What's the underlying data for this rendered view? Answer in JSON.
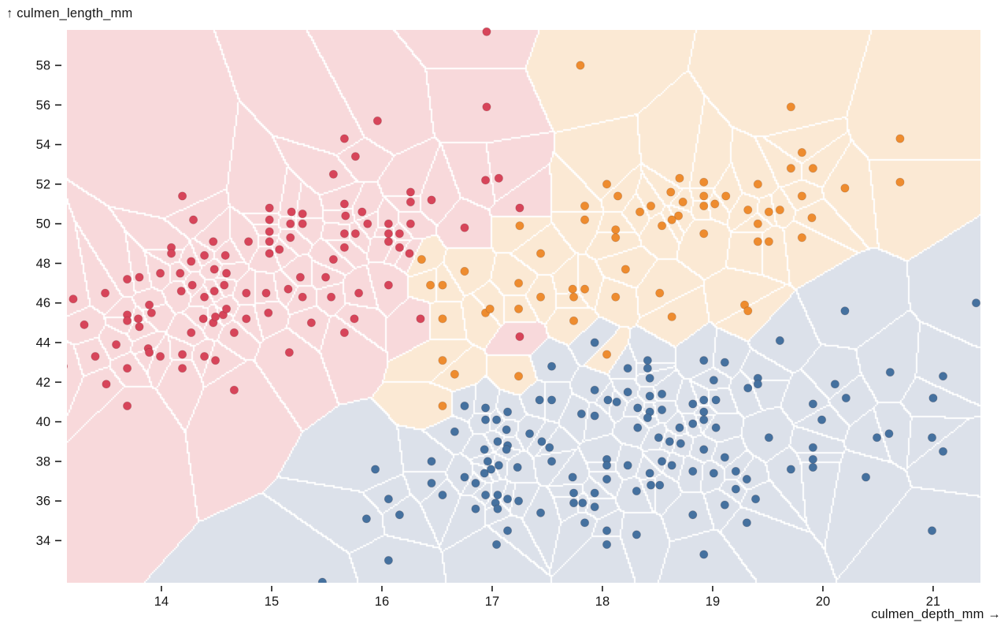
{
  "figure": {
    "kind": "scatterplot with voronoi tessellation background",
    "background_color": "#ffffff"
  },
  "axes": {
    "y_title": "↑ culmen_length_mm",
    "x_title": "culmen_depth_mm →",
    "tick_color": "#1a1a1a",
    "label_color": "#151515"
  },
  "chart_data": {
    "type": "scatter",
    "title": "",
    "xlabel": "culmen_depth_mm",
    "ylabel": "culmen_length_mm",
    "x_domain": [
      13.143,
      21.429
    ],
    "y_domain": [
      31.87,
      59.79
    ],
    "x_ticks": [
      14,
      15,
      16,
      17,
      18,
      19,
      20,
      21
    ],
    "y_ticks": [
      34,
      36,
      38,
      40,
      42,
      44,
      46,
      48,
      50,
      52,
      54,
      56,
      58
    ],
    "grid": false,
    "legend": "none",
    "background": "voronoi cells seeded at every point, filled with pale series color, white cell borders",
    "mesh_color": "#ffffff",
    "series": [
      {
        "name": "red",
        "dot_color": "#d7455a",
        "cell_color": "#f8d9db",
        "points": [
          [
            14.19,
            51.4
          ],
          [
            14.29,
            50.2
          ],
          [
            15.66,
            54.3
          ],
          [
            15.76,
            53.4
          ],
          [
            15.56,
            52.5
          ],
          [
            14.98,
            50.8
          ],
          [
            15.18,
            50.6
          ],
          [
            15.28,
            50.5
          ],
          [
            14.98,
            50.2
          ],
          [
            15.17,
            50.0
          ],
          [
            15.28,
            50.0
          ],
          [
            14.98,
            49.6
          ],
          [
            14.98,
            49.1
          ],
          [
            14.79,
            49.1
          ],
          [
            14.47,
            49.1
          ],
          [
            14.98,
            48.5
          ],
          [
            15.07,
            48.7
          ],
          [
            15.17,
            49.3
          ],
          [
            15.66,
            51.0
          ],
          [
            15.67,
            50.4
          ],
          [
            15.82,
            50.6
          ],
          [
            15.87,
            50.0
          ],
          [
            15.66,
            49.5
          ],
          [
            15.76,
            49.5
          ],
          [
            15.66,
            48.8
          ],
          [
            15.56,
            48.2
          ],
          [
            14.48,
            47.7
          ],
          [
            14.58,
            48.4
          ],
          [
            14.59,
            47.5
          ],
          [
            14.09,
            48.8
          ],
          [
            14.09,
            48.5
          ],
          [
            14.39,
            48.4
          ],
          [
            14.27,
            48.1
          ],
          [
            14.17,
            47.5
          ],
          [
            13.99,
            47.5
          ],
          [
            13.69,
            47.2
          ],
          [
            13.8,
            47.3
          ],
          [
            13.49,
            46.5
          ],
          [
            13.2,
            46.2
          ],
          [
            14.18,
            46.6
          ],
          [
            14.28,
            46.9
          ],
          [
            14.39,
            46.3
          ],
          [
            14.48,
            46.6
          ],
          [
            14.57,
            46.9
          ],
          [
            14.77,
            46.5
          ],
          [
            14.95,
            46.5
          ],
          [
            15.15,
            46.7
          ],
          [
            15.26,
            47.3
          ],
          [
            15.28,
            46.3
          ],
          [
            15.49,
            47.3
          ],
          [
            15.54,
            46.3
          ],
          [
            15.79,
            46.5
          ],
          [
            13.89,
            45.9
          ],
          [
            16.95,
            59.7
          ],
          [
            16.95,
            55.9
          ],
          [
            16.94,
            52.2
          ],
          [
            17.06,
            52.3
          ],
          [
            17.25,
            50.8
          ],
          [
            15.96,
            55.2
          ],
          [
            16.26,
            51.6
          ],
          [
            16.26,
            51.1
          ],
          [
            16.45,
            51.2
          ],
          [
            16.26,
            50.0
          ],
          [
            16.06,
            50.0
          ],
          [
            16.06,
            49.5
          ],
          [
            16.16,
            49.5
          ],
          [
            16.06,
            49.1
          ],
          [
            16.16,
            48.8
          ],
          [
            16.25,
            48.5
          ],
          [
            16.75,
            49.8
          ],
          [
            16.06,
            46.9
          ],
          [
            13.3,
            44.9
          ],
          [
            13.69,
            45.4
          ],
          [
            13.69,
            45.1
          ],
          [
            13.79,
            45.2
          ],
          [
            13.8,
            44.8
          ],
          [
            13.91,
            45.5
          ],
          [
            13.59,
            43.9
          ],
          [
            13.4,
            43.3
          ],
          [
            13.11,
            42.8
          ],
          [
            13.69,
            42.7
          ],
          [
            13.5,
            41.9
          ],
          [
            13.69,
            40.8
          ],
          [
            13.88,
            43.7
          ],
          [
            13.89,
            43.5
          ],
          [
            13.99,
            43.3
          ],
          [
            14.19,
            43.4
          ],
          [
            14.19,
            42.7
          ],
          [
            14.27,
            44.5
          ],
          [
            14.38,
            45.2
          ],
          [
            14.39,
            43.3
          ],
          [
            14.47,
            45.0
          ],
          [
            14.49,
            45.3
          ],
          [
            14.49,
            43.1
          ],
          [
            14.56,
            45.4
          ],
          [
            14.59,
            45.7
          ],
          [
            14.66,
            44.5
          ],
          [
            14.66,
            41.6
          ],
          [
            14.77,
            45.2
          ],
          [
            14.97,
            45.5
          ],
          [
            15.16,
            43.5
          ],
          [
            15.36,
            45.0
          ],
          [
            15.66,
            44.5
          ],
          [
            15.75,
            45.2
          ],
          [
            16.35,
            45.2
          ],
          [
            17.25,
            44.3
          ]
        ]
      },
      {
        "name": "orange",
        "dot_color": "#ee8c2f",
        "cell_color": "#fbe9d4",
        "points": [
          [
            17.8,
            58.0
          ],
          [
            18.04,
            52.0
          ],
          [
            18.14,
            51.4
          ],
          [
            18.44,
            50.9
          ],
          [
            18.34,
            50.6
          ],
          [
            17.84,
            50.9
          ],
          [
            17.84,
            50.2
          ],
          [
            18.12,
            49.7
          ],
          [
            18.12,
            49.3
          ],
          [
            17.44,
            48.5
          ],
          [
            17.25,
            49.9
          ],
          [
            18.21,
            47.7
          ],
          [
            17.73,
            46.7
          ],
          [
            17.84,
            46.7
          ],
          [
            17.74,
            46.3
          ],
          [
            17.24,
            47.0
          ],
          [
            17.44,
            46.3
          ],
          [
            18.12,
            46.3
          ],
          [
            18.52,
            46.5
          ],
          [
            16.75,
            47.6
          ],
          [
            16.44,
            46.9
          ],
          [
            16.55,
            46.9
          ],
          [
            18.7,
            52.3
          ],
          [
            18.73,
            51.1
          ],
          [
            18.69,
            50.4
          ],
          [
            18.63,
            50.2
          ],
          [
            18.54,
            49.9
          ],
          [
            18.62,
            51.6
          ],
          [
            16.36,
            48.2
          ],
          [
            19.71,
            55.9
          ],
          [
            20.7,
            54.3
          ],
          [
            19.81,
            53.6
          ],
          [
            19.91,
            52.8
          ],
          [
            19.71,
            52.8
          ],
          [
            20.7,
            52.1
          ],
          [
            20.2,
            51.8
          ],
          [
            18.92,
            52.1
          ],
          [
            18.92,
            51.4
          ],
          [
            18.92,
            50.9
          ],
          [
            19.02,
            51.0
          ],
          [
            19.12,
            51.4
          ],
          [
            19.41,
            52.0
          ],
          [
            19.32,
            50.7
          ],
          [
            19.51,
            50.6
          ],
          [
            19.61,
            50.7
          ],
          [
            19.81,
            51.4
          ],
          [
            19.9,
            50.3
          ],
          [
            19.41,
            50.0
          ],
          [
            18.92,
            49.5
          ],
          [
            19.41,
            49.1
          ],
          [
            19.51,
            49.1
          ],
          [
            19.81,
            49.3
          ],
          [
            19.29,
            45.9
          ],
          [
            16.55,
            45.2
          ],
          [
            16.94,
            45.5
          ],
          [
            16.98,
            45.7
          ],
          [
            17.24,
            45.7
          ],
          [
            17.74,
            45.1
          ],
          [
            18.04,
            43.4
          ],
          [
            16.55,
            43.1
          ],
          [
            16.66,
            42.4
          ],
          [
            17.24,
            42.3
          ],
          [
            16.55,
            40.8
          ],
          [
            18.63,
            45.3
          ],
          [
            19.32,
            45.6
          ]
        ]
      },
      {
        "name": "blue",
        "dot_color": "#45719f",
        "cell_color": "#dce1ea",
        "points": [
          [
            15.94,
            37.6
          ],
          [
            15.86,
            35.1
          ],
          [
            15.46,
            31.9
          ],
          [
            17.93,
            44.0
          ],
          [
            18.41,
            43.1
          ],
          [
            18.41,
            42.7
          ],
          [
            18.23,
            42.7
          ],
          [
            18.43,
            42.2
          ],
          [
            17.54,
            42.8
          ],
          [
            17.43,
            41.1
          ],
          [
            17.54,
            41.1
          ],
          [
            17.93,
            41.6
          ],
          [
            18.23,
            41.5
          ],
          [
            18.43,
            41.3
          ],
          [
            18.54,
            41.4
          ],
          [
            18.43,
            40.5
          ],
          [
            18.54,
            40.6
          ],
          [
            18.05,
            41.1
          ],
          [
            18.13,
            41.0
          ],
          [
            18.32,
            40.7
          ],
          [
            17.81,
            40.4
          ],
          [
            17.93,
            40.3
          ],
          [
            18.41,
            40.2
          ],
          [
            16.75,
            40.8
          ],
          [
            16.94,
            40.7
          ],
          [
            16.94,
            40.1
          ],
          [
            17.04,
            40.1
          ],
          [
            17.14,
            40.5
          ],
          [
            16.66,
            39.5
          ],
          [
            17.13,
            39.6
          ],
          [
            17.14,
            38.8
          ],
          [
            17.13,
            38.6
          ],
          [
            17.34,
            39.4
          ],
          [
            17.45,
            39.0
          ],
          [
            17.52,
            38.7
          ],
          [
            17.54,
            38.0
          ],
          [
            17.05,
            39.0
          ],
          [
            16.93,
            38.6
          ],
          [
            16.96,
            38.0
          ],
          [
            16.93,
            37.4
          ],
          [
            16.99,
            37.6
          ],
          [
            17.06,
            37.8
          ],
          [
            17.23,
            37.7
          ],
          [
            16.45,
            38.0
          ],
          [
            16.45,
            36.9
          ],
          [
            16.55,
            36.3
          ],
          [
            16.75,
            37.2
          ],
          [
            16.85,
            36.9
          ],
          [
            16.06,
            36.1
          ],
          [
            16.16,
            35.3
          ],
          [
            16.85,
            35.6
          ],
          [
            16.94,
            36.3
          ],
          [
            17.05,
            36.3
          ],
          [
            17.03,
            35.9
          ],
          [
            17.05,
            35.6
          ],
          [
            17.14,
            36.1
          ],
          [
            17.24,
            36.0
          ],
          [
            17.44,
            35.4
          ],
          [
            17.73,
            37.2
          ],
          [
            17.74,
            36.4
          ],
          [
            17.74,
            35.9
          ],
          [
            17.82,
            35.9
          ],
          [
            17.84,
            34.9
          ],
          [
            17.93,
            36.4
          ],
          [
            17.93,
            35.7
          ],
          [
            18.04,
            38.1
          ],
          [
            18.04,
            37.8
          ],
          [
            18.04,
            37.1
          ],
          [
            18.23,
            37.8
          ],
          [
            18.31,
            36.5
          ],
          [
            18.43,
            37.4
          ],
          [
            18.44,
            36.8
          ],
          [
            18.52,
            36.8
          ],
          [
            18.54,
            38.0
          ],
          [
            18.63,
            37.8
          ],
          [
            18.51,
            39.2
          ],
          [
            18.61,
            39.0
          ],
          [
            18.71,
            38.9
          ],
          [
            18.32,
            39.7
          ],
          [
            18.7,
            39.7
          ],
          [
            17.14,
            34.5
          ],
          [
            17.04,
            33.8
          ],
          [
            18.04,
            34.5
          ],
          [
            18.04,
            33.8
          ],
          [
            18.31,
            34.3
          ],
          [
            16.06,
            33.0
          ],
          [
            20.2,
            45.6
          ],
          [
            19.61,
            44.1
          ],
          [
            18.92,
            43.1
          ],
          [
            19.11,
            43.0
          ],
          [
            19.01,
            42.1
          ],
          [
            19.41,
            42.2
          ],
          [
            19.32,
            41.7
          ],
          [
            19.41,
            41.9
          ],
          [
            18.92,
            41.1
          ],
          [
            19.03,
            41.1
          ],
          [
            18.92,
            40.5
          ],
          [
            18.92,
            40.1
          ],
          [
            18.82,
            40.9
          ],
          [
            18.82,
            39.9
          ],
          [
            19.03,
            39.7
          ],
          [
            20.61,
            42.5
          ],
          [
            21.09,
            42.3
          ],
          [
            20.11,
            41.9
          ],
          [
            20.21,
            41.2
          ],
          [
            21.0,
            41.2
          ],
          [
            19.91,
            40.9
          ],
          [
            19.99,
            40.1
          ],
          [
            20.49,
            39.2
          ],
          [
            20.6,
            39.4
          ],
          [
            19.51,
            39.2
          ],
          [
            20.99,
            39.2
          ],
          [
            21.09,
            38.5
          ],
          [
            18.92,
            38.6
          ],
          [
            19.11,
            38.2
          ],
          [
            19.91,
            38.7
          ],
          [
            19.91,
            38.1
          ],
          [
            19.91,
            37.7
          ],
          [
            19.71,
            37.6
          ],
          [
            19.01,
            37.4
          ],
          [
            19.21,
            37.5
          ],
          [
            19.31,
            37.1
          ],
          [
            19.21,
            36.6
          ],
          [
            18.82,
            37.5
          ],
          [
            20.39,
            37.2
          ],
          [
            19.39,
            36.1
          ],
          [
            19.11,
            35.8
          ],
          [
            18.82,
            35.3
          ],
          [
            19.31,
            34.9
          ],
          [
            20.99,
            34.5
          ],
          [
            18.92,
            33.3
          ],
          [
            21.39,
            46.0
          ]
        ]
      }
    ]
  }
}
